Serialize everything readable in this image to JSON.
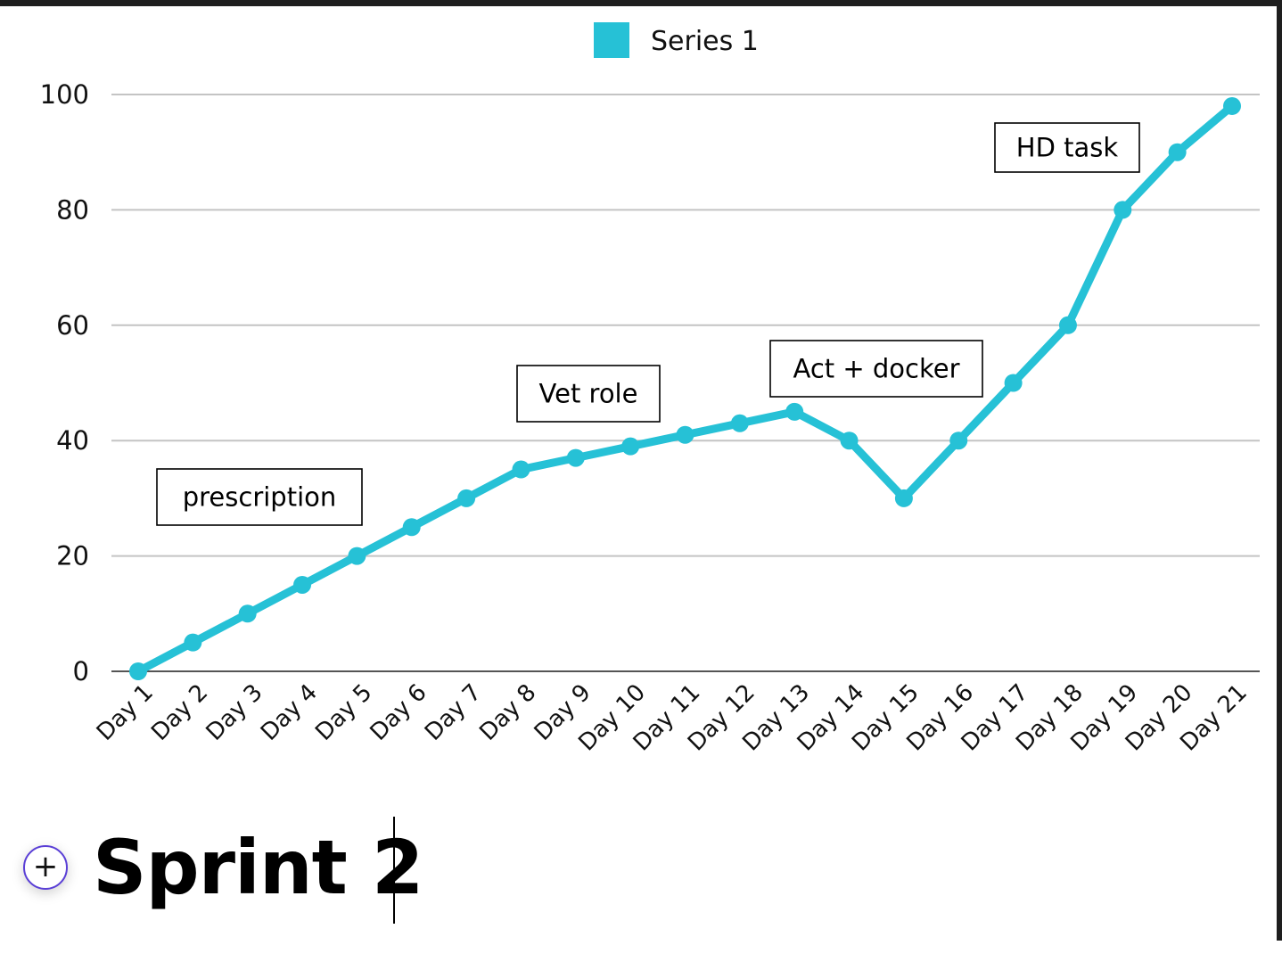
{
  "chart_data": {
    "type": "line",
    "categories": [
      "Day 1",
      "Day 2",
      "Day 3",
      "Day 4",
      "Day 5",
      "Day 6",
      "Day 7",
      "Day 8",
      "Day 9",
      "Day 10",
      "Day 11",
      "Day 12",
      "Day 13",
      "Day 14",
      "Day 15",
      "Day 16",
      "Day 17",
      "Day 18",
      "Day 19",
      "Day 20",
      "Day 21"
    ],
    "series": [
      {
        "name": "Series 1",
        "values": [
          0,
          5,
          10,
          15,
          20,
          25,
          30,
          35,
          37,
          39,
          41,
          43,
          45,
          40,
          30,
          40,
          50,
          60,
          80,
          90,
          98
        ],
        "color": "#26c1d6"
      }
    ],
    "ylim": [
      0,
      100
    ],
    "yticks": [
      0,
      20,
      40,
      60,
      80,
      100
    ],
    "grid": true,
    "legend": "top-center",
    "annotations": [
      {
        "text": "prescription",
        "near_category": "Day 3"
      },
      {
        "text": "Vet role",
        "near_category": "Day 9"
      },
      {
        "text": "Act + docker",
        "near_category": "Day 14"
      },
      {
        "text": "HD task",
        "near_category": "Day 19"
      }
    ]
  },
  "editor": {
    "heading": "Sprint 2",
    "add_icon": "plus-icon"
  }
}
